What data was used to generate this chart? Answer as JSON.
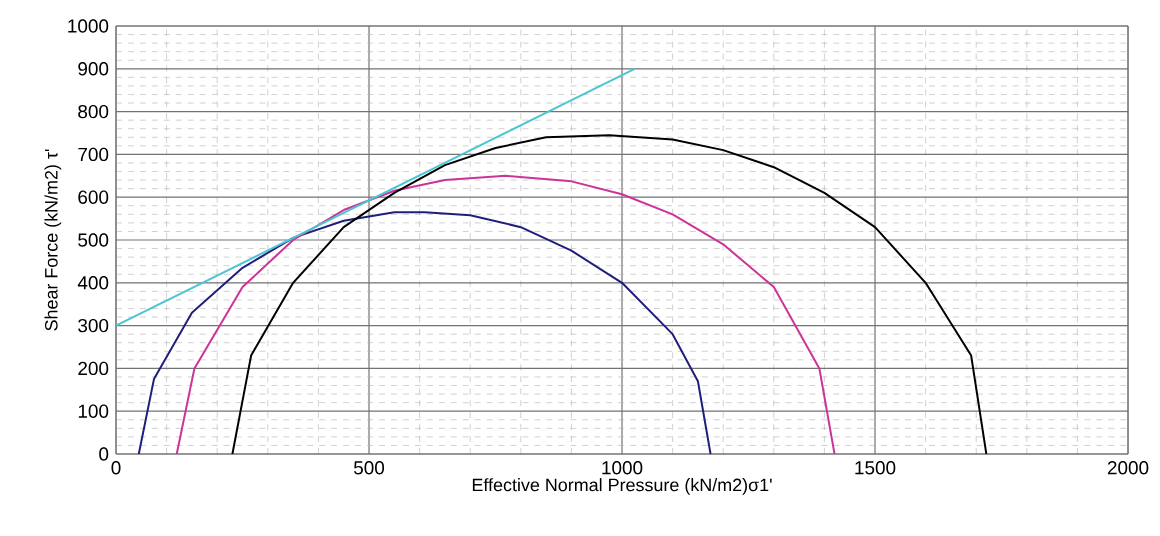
{
  "chart_data": {
    "type": "line",
    "xlabel": "Effective Normal Pressure (kN/m2)σ1'",
    "ylabel": "Shear Force (kN/m2) τ'",
    "xlim": [
      0,
      2000
    ],
    "ylim": [
      0,
      1000
    ],
    "xticks": [
      0,
      500,
      1000,
      1500,
      2000
    ],
    "yticks": [
      0,
      100,
      200,
      300,
      400,
      500,
      600,
      700,
      800,
      900,
      1000
    ],
    "grid": true,
    "marker": "none",
    "line_style": "solid",
    "series": [
      {
        "color": "#1f1f7a",
        "x": [
          45,
          75,
          150,
          250,
          350,
          450,
          550,
          610,
          700,
          800,
          900,
          1000,
          1100,
          1150,
          1175
        ],
        "values": [
          0,
          175,
          330,
          435,
          505,
          545,
          565,
          565,
          558,
          530,
          475,
          400,
          280,
          170,
          0
        ]
      },
      {
        "color": "#cc3399",
        "x": [
          120,
          155,
          250,
          350,
          450,
          550,
          650,
          770,
          900,
          1000,
          1100,
          1200,
          1300,
          1390,
          1420
        ],
        "values": [
          0,
          200,
          390,
          500,
          570,
          615,
          640,
          650,
          637,
          607,
          560,
          490,
          390,
          200,
          0
        ]
      },
      {
        "color": "#000000",
        "x": [
          230,
          267,
          350,
          450,
          550,
          650,
          750,
          850,
          975,
          1100,
          1200,
          1300,
          1400,
          1500,
          1600,
          1690,
          1720
        ],
        "values": [
          0,
          230,
          400,
          530,
          610,
          675,
          715,
          740,
          745,
          735,
          710,
          670,
          610,
          530,
          400,
          230,
          0
        ]
      },
      {
        "color": "#4cc4d4",
        "x": [
          0,
          1025
        ],
        "values": [
          300,
          900
        ]
      }
    ]
  }
}
